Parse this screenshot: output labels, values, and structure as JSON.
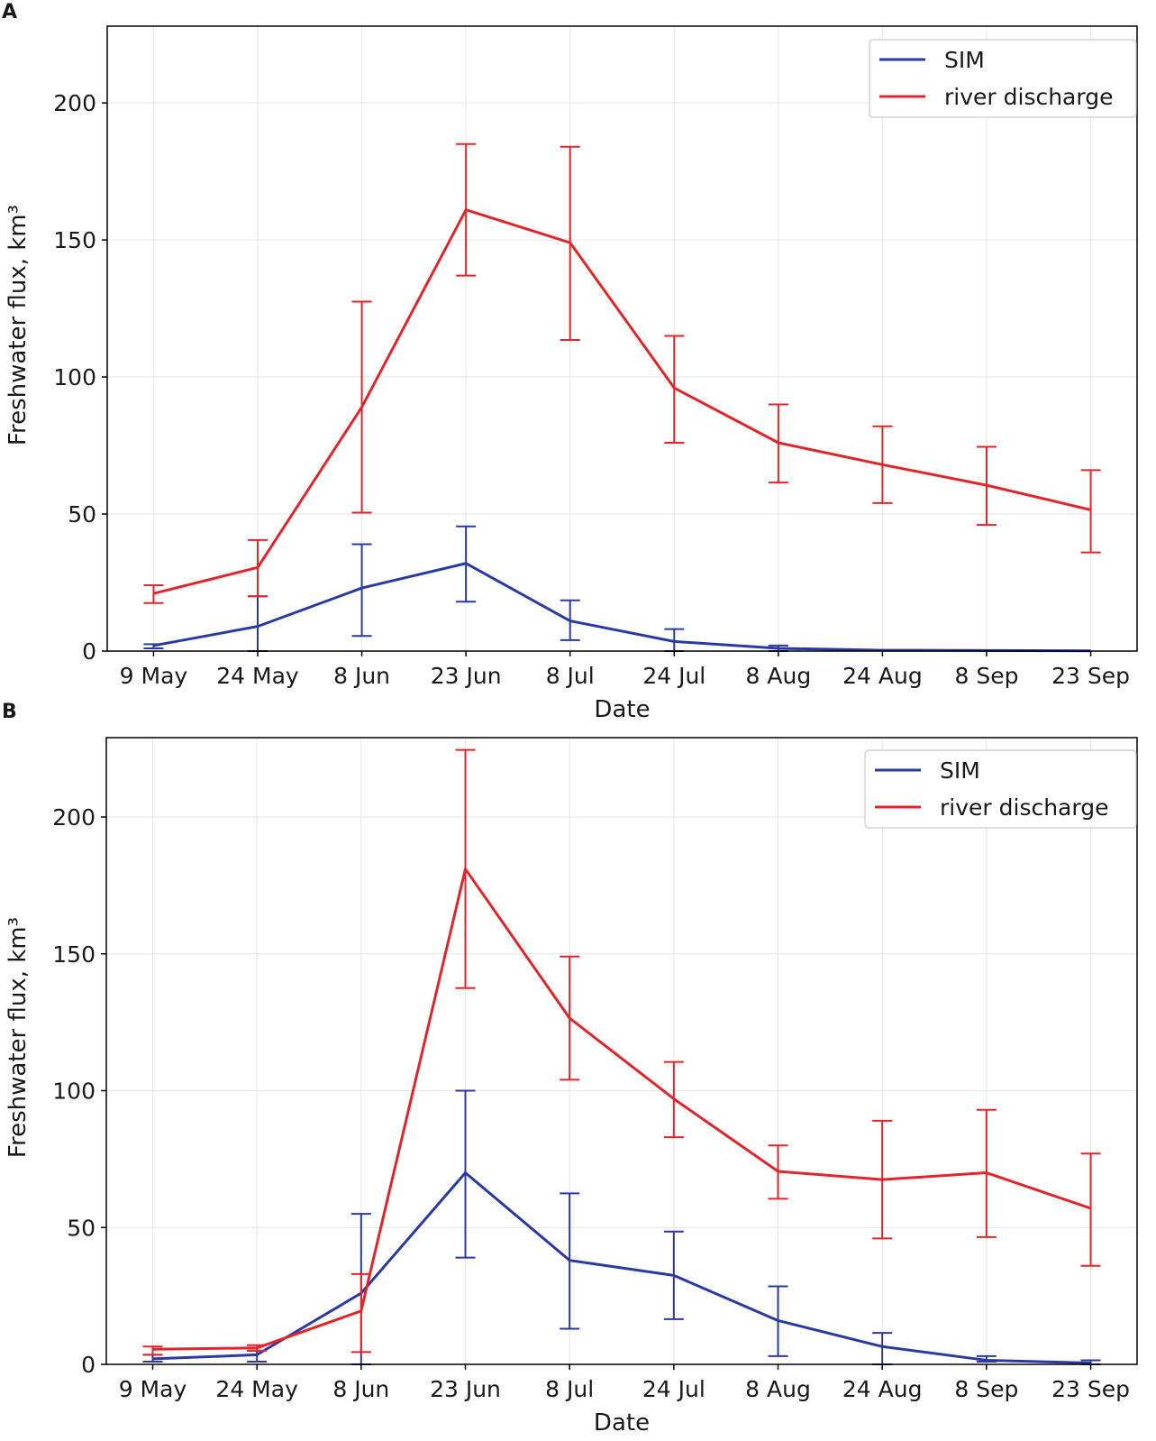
{
  "chart_data": [
    {
      "panel": "A",
      "type": "line",
      "xlabel": "Date",
      "ylabel": "Freshwater flux, km³",
      "ylim": [
        0,
        228
      ],
      "yticks": [
        0,
        50,
        100,
        150,
        200
      ],
      "categories": [
        "9 May",
        "24 May",
        "8 Jun",
        "23 Jun",
        "8 Jul",
        "24 Jul",
        "8 Aug",
        "24 Aug",
        "8 Sep",
        "23 Sep"
      ],
      "grid": true,
      "legend_position": "top-right",
      "series": [
        {
          "name": "SIM",
          "color": "#2b3aa0",
          "values": [
            2,
            9,
            23,
            32,
            11,
            3.5,
            1,
            0.3,
            0.2,
            0.1
          ],
          "err_low": [
            1,
            0,
            5.5,
            18,
            4,
            0,
            0,
            null,
            null,
            null
          ],
          "err_high": [
            2.5,
            20,
            39,
            45.5,
            18.5,
            8,
            2,
            null,
            null,
            null
          ]
        },
        {
          "name": "river discharge",
          "color": "#e0262b",
          "values": [
            21,
            30.5,
            89,
            161,
            149,
            96,
            76,
            68,
            60.5,
            51.5
          ],
          "err_low": [
            17.5,
            20,
            50.5,
            137,
            113.5,
            76,
            61.5,
            54,
            46,
            36
          ],
          "err_high": [
            24,
            40.5,
            127.5,
            185,
            184,
            115,
            90,
            82,
            74.5,
            66
          ]
        }
      ]
    },
    {
      "panel": "B",
      "type": "line",
      "xlabel": "Date",
      "ylabel": "Freshwater flux, km³",
      "ylim": [
        0,
        229
      ],
      "yticks": [
        0,
        50,
        100,
        150,
        200
      ],
      "categories": [
        "9 May",
        "24 May",
        "8 Jun",
        "23 Jun",
        "8 Jul",
        "24 Jul",
        "8 Aug",
        "24 Aug",
        "8 Sep",
        "23 Sep"
      ],
      "grid": true,
      "legend_position": "top-right",
      "series": [
        {
          "name": "SIM",
          "color": "#2b3aa0",
          "values": [
            2,
            3.5,
            26,
            70,
            38,
            32.5,
            16,
            6.5,
            1.5,
            0.5
          ],
          "err_low": [
            1,
            1,
            0,
            39,
            13,
            16.5,
            3,
            0,
            1,
            0
          ],
          "err_high": [
            3.5,
            5,
            55,
            100,
            62.5,
            48.5,
            28.5,
            11.5,
            3,
            1.5
          ]
        },
        {
          "name": "river discharge",
          "color": "#e0262b",
          "values": [
            5.5,
            6,
            19.5,
            181,
            126.5,
            97,
            70.5,
            67.5,
            70,
            57
          ],
          "err_low": [
            3.5,
            5,
            4.5,
            137.5,
            104,
            83,
            60.5,
            46,
            46.5,
            36
          ],
          "err_high": [
            6.5,
            7,
            33,
            224.5,
            149,
            110.5,
            80,
            89,
            93,
            77
          ]
        }
      ]
    }
  ]
}
